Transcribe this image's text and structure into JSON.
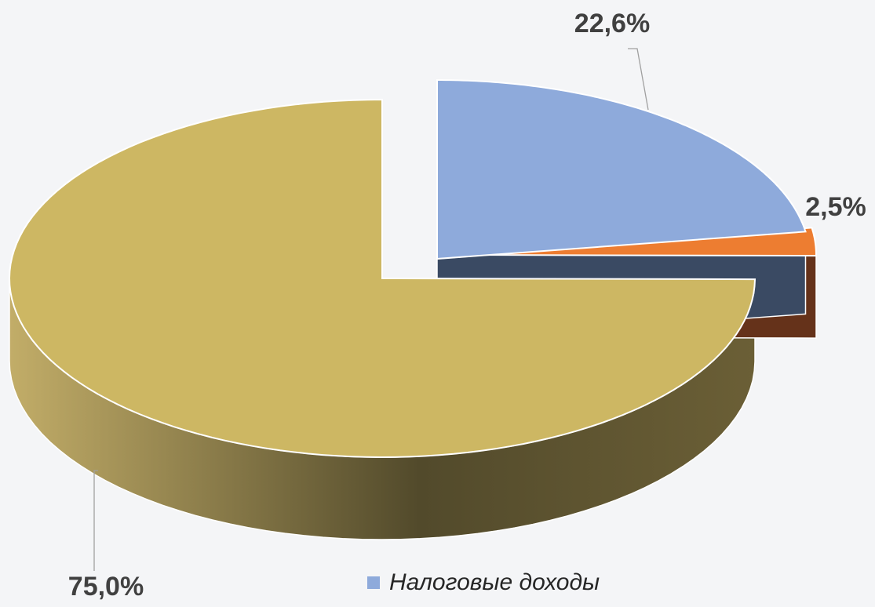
{
  "chart_data": {
    "type": "pie",
    "categories": [
      "Налоговые доходы",
      null,
      null
    ],
    "values": [
      22.6,
      2.5,
      75.0
    ],
    "value_labels": [
      "22,6%",
      "2,5%",
      "75,0%"
    ],
    "colors": [
      "#8eaadb",
      "#ed7d31",
      "#cdb763"
    ],
    "side_colors": [
      "#3a4a63",
      "#65321a",
      "#8a7b45"
    ],
    "legend": true
  }
}
